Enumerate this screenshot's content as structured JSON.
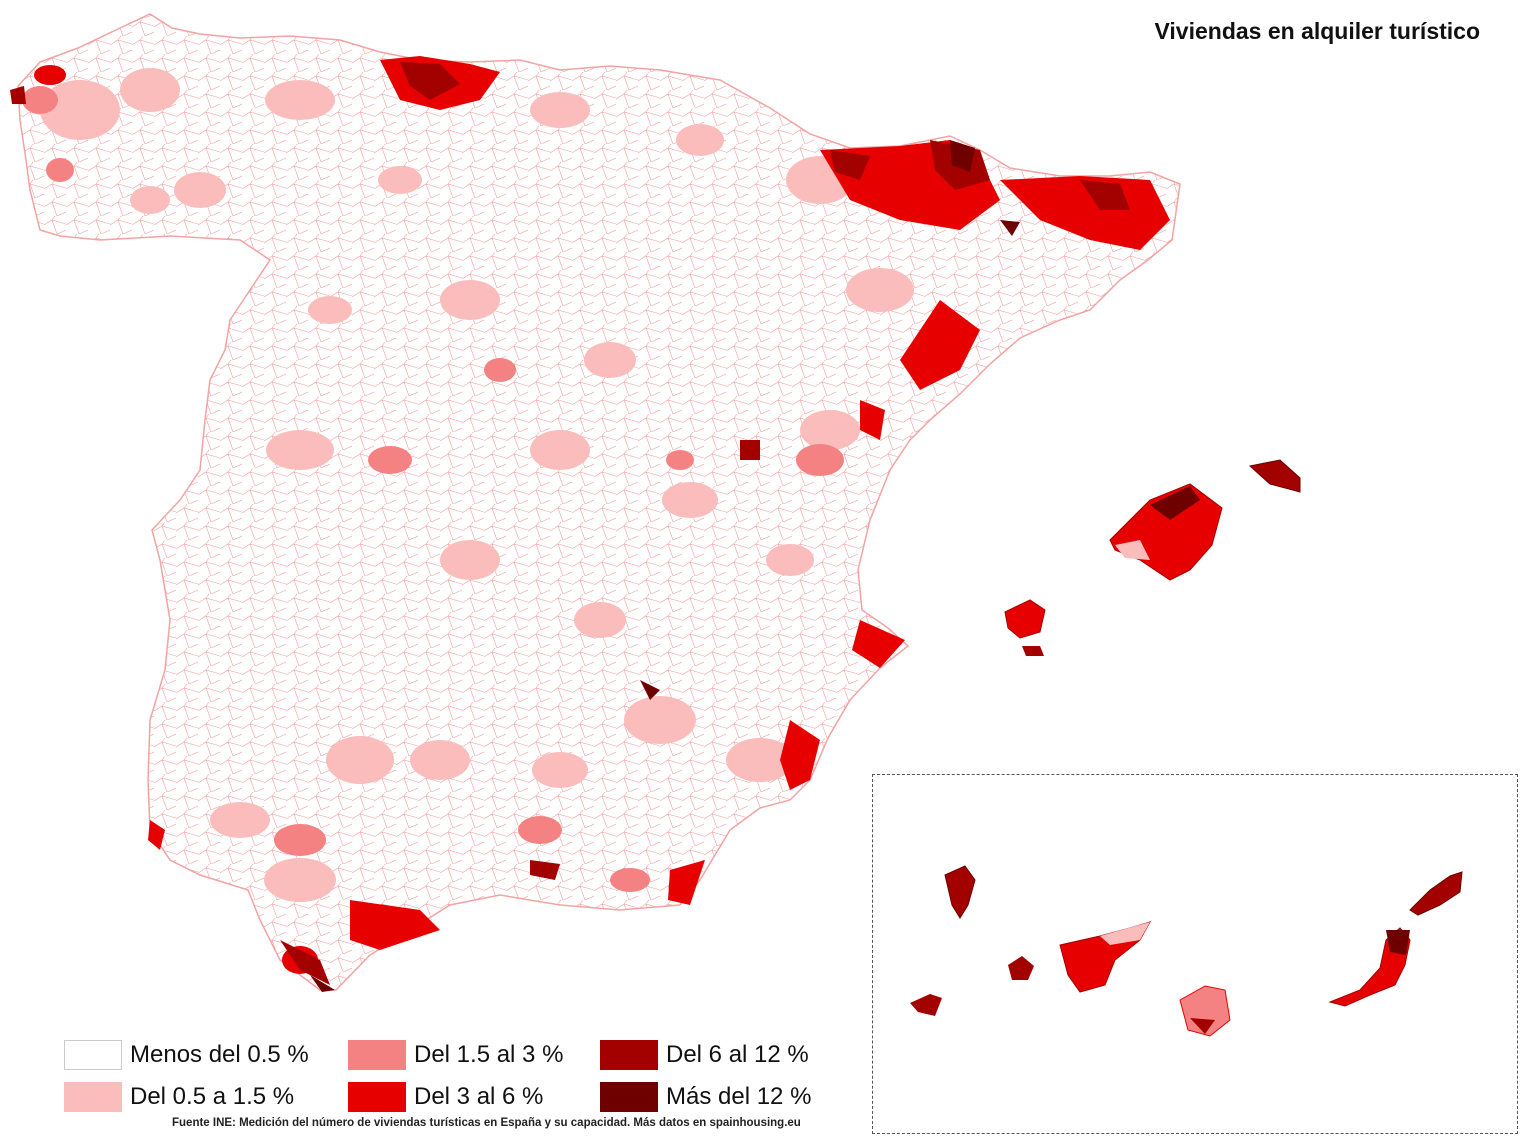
{
  "title": "Viviendas en alquiler turístico",
  "legend": [
    {
      "label": "Menos del 0.5 %",
      "color": "#ffffff"
    },
    {
      "label": "Del 0.5 a 1.5 %",
      "color": "#fbbcbc"
    },
    {
      "label": "Del 1.5 al 3 %",
      "color": "#f58282"
    },
    {
      "label": "Del 3 al 6 %",
      "color": "#e60000"
    },
    {
      "label": "Del 6 al 12 %",
      "color": "#a30000"
    },
    {
      "label": "Más del 12 %",
      "color": "#6e0000"
    }
  ],
  "source": "Fuente INE: Medición del número de viviendas turísticas en España y su capacidad. Más datos en spainhousing.eu"
}
